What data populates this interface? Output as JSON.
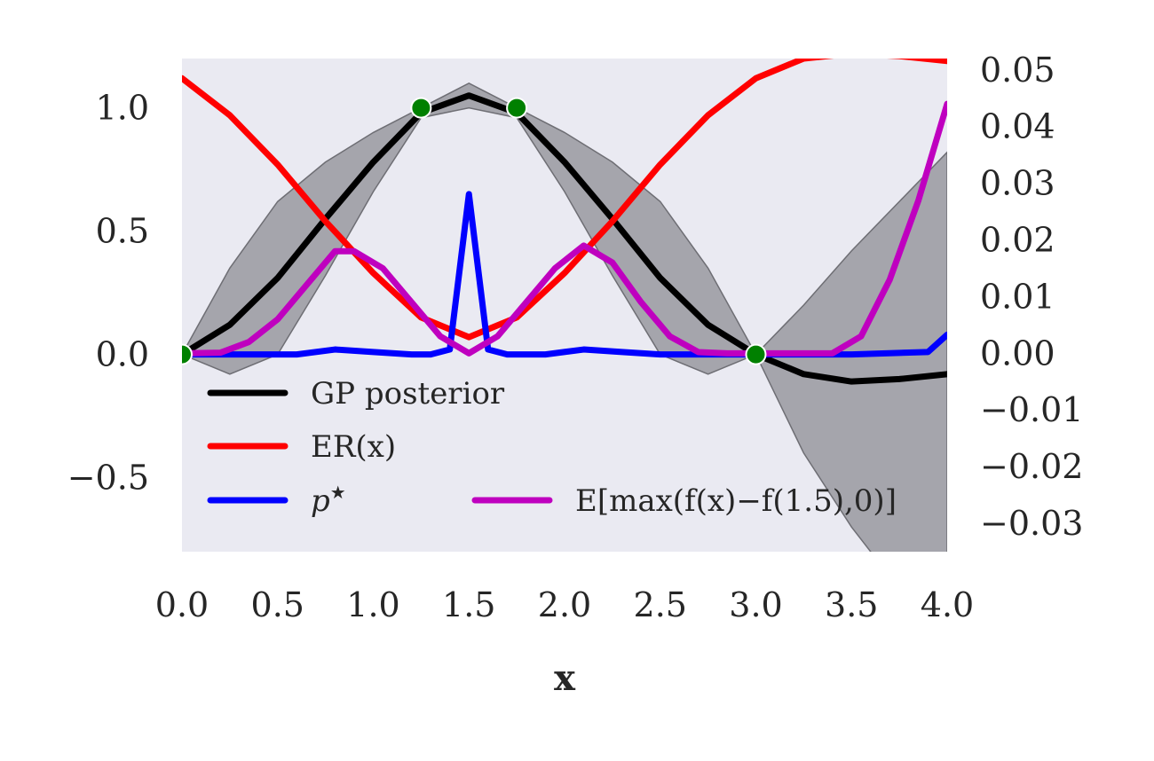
{
  "chart_data": {
    "type": "line",
    "xlabel": "x",
    "ylabel": "",
    "xlim": [
      0,
      4
    ],
    "ylim_left": [
      -0.8,
      1.2
    ],
    "ylim_right": [
      -0.035,
      0.052
    ],
    "grid": false,
    "background_color": "#EAEAF2",
    "x_ticks": [
      "0.0",
      "0.5",
      "1.0",
      "1.5",
      "2.0",
      "2.5",
      "3.0",
      "3.5",
      "4.0"
    ],
    "left_y_ticks": [
      "1.0",
      "0.5",
      "0.0",
      "−0.5"
    ],
    "right_y_ticks": [
      "0.05",
      "0.04",
      "0.03",
      "0.02",
      "0.01",
      "0.00",
      "−0.01",
      "−0.02",
      "−0.03"
    ],
    "legend_placement": "lower-left",
    "series": [
      {
        "name": "GP posterior",
        "axis": "left",
        "color": "#000000",
        "x": [
          0,
          0.25,
          0.5,
          0.75,
          1.0,
          1.25,
          1.5,
          1.75,
          2.0,
          2.25,
          2.5,
          2.75,
          3.0,
          3.25,
          3.5,
          3.75,
          4.0
        ],
        "y": [
          0,
          0.12,
          0.31,
          0.55,
          0.78,
          0.98,
          1.05,
          0.98,
          0.78,
          0.55,
          0.31,
          0.12,
          0,
          -0.08,
          -0.11,
          -0.1,
          -0.08
        ]
      },
      {
        "name": "ER(x)",
        "axis": "left",
        "color": "#FF0000",
        "x": [
          0,
          0.25,
          0.5,
          0.75,
          1.0,
          1.25,
          1.5,
          1.75,
          2.0,
          2.25,
          2.5,
          2.75,
          3.0,
          3.25,
          3.5,
          3.75,
          4.0
        ],
        "y": [
          1.12,
          0.97,
          0.77,
          0.54,
          0.33,
          0.15,
          0.07,
          0.15,
          0.33,
          0.54,
          0.77,
          0.97,
          1.12,
          1.2,
          1.22,
          1.21,
          1.19
        ]
      },
      {
        "name": "p*",
        "axis": "left",
        "color": "#0000FF",
        "x": [
          0,
          0.4,
          0.6,
          0.8,
          1.0,
          1.2,
          1.3,
          1.4,
          1.5,
          1.6,
          1.7,
          1.9,
          2.1,
          2.3,
          2.5,
          2.7,
          3.0,
          3.5,
          3.9,
          4.0
        ],
        "y": [
          0,
          0,
          0,
          0.02,
          0.01,
          0.0,
          0.0,
          0.02,
          0.65,
          0.02,
          0,
          0,
          0.02,
          0.01,
          0,
          0,
          0,
          0,
          0.01,
          0.08
        ]
      },
      {
        "name": "E[max(f(x)−f(1.5),0)]",
        "axis": "right",
        "color": "#BF00BF",
        "x": [
          0,
          0.2,
          0.35,
          0.5,
          0.65,
          0.8,
          0.9,
          1.05,
          1.2,
          1.35,
          1.5,
          1.65,
          1.8,
          1.95,
          2.1,
          2.25,
          2.4,
          2.55,
          2.7,
          2.85,
          3.0,
          3.2,
          3.4,
          3.55,
          3.7,
          3.85,
          4.0
        ],
        "y": [
          0,
          0.0001,
          0.002,
          0.006,
          0.012,
          0.018,
          0.018,
          0.015,
          0.009,
          0.003,
          0,
          0.003,
          0.009,
          0.015,
          0.019,
          0.016,
          0.009,
          0.003,
          0.0002,
          0,
          0,
          0,
          0,
          0.003,
          0.013,
          0.027,
          0.044
        ]
      }
    ],
    "band": {
      "axis": "left",
      "color": "#8E8E94",
      "x": [
        0,
        0.25,
        0.5,
        0.75,
        1.0,
        1.25,
        1.5,
        1.75,
        2.0,
        2.25,
        2.5,
        2.75,
        3.0,
        3.25,
        3.5,
        3.75,
        4.0
      ],
      "upper": [
        0,
        0.35,
        0.62,
        0.78,
        0.9,
        1.0,
        1.1,
        1.0,
        0.9,
        0.78,
        0.62,
        0.35,
        0,
        0.2,
        0.42,
        0.62,
        0.82
      ],
      "lower": [
        0,
        -0.08,
        0.0,
        0.32,
        0.66,
        0.96,
        1.0,
        0.96,
        0.66,
        0.32,
        0.0,
        -0.08,
        0,
        -0.4,
        -0.7,
        -0.95,
        -1.2
      ]
    },
    "observations": {
      "color": "#008000",
      "x": [
        0,
        1.25,
        1.75,
        3.0
      ],
      "y": [
        0,
        1.0,
        1.0,
        0
      ]
    },
    "legend": [
      {
        "label": "GP posterior",
        "color": "#000000"
      },
      {
        "label": "ER(x)",
        "color": "#FF0000"
      },
      {
        "label": "p",
        "sup": "★",
        "color": "#0000FF"
      },
      {
        "label": "E[max(f(x)−f(1.5),0)]",
        "color": "#BF00BF"
      }
    ]
  }
}
